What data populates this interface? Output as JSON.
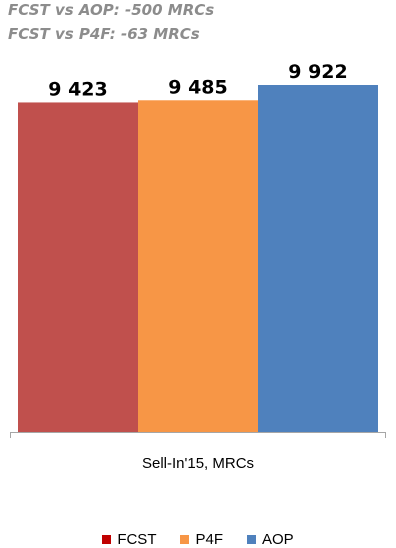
{
  "annotations": [
    "FCST vs AOP:  -500 MRCs",
    "FCST vs P4F:  -63 MRCs"
  ],
  "chart_data": {
    "type": "bar",
    "categories": [
      "Sell-In'15, MRCs"
    ],
    "series": [
      {
        "name": "FCST",
        "values": [
          9423
        ],
        "label": "9 423",
        "color": "#c0504d",
        "legend_color": "#c00000"
      },
      {
        "name": "P4F",
        "values": [
          9485
        ],
        "label": "9 485",
        "color": "#f79646",
        "legend_color": "#f79646"
      },
      {
        "name": "AOP",
        "values": [
          9922
        ],
        "label": "9 922",
        "color": "#4f81bd",
        "legend_color": "#4f81bd"
      }
    ],
    "title": "",
    "xlabel": "",
    "ylabel": "",
    "ylim": [
      0,
      9922
    ],
    "grid": false,
    "legend_position": "bottom"
  }
}
